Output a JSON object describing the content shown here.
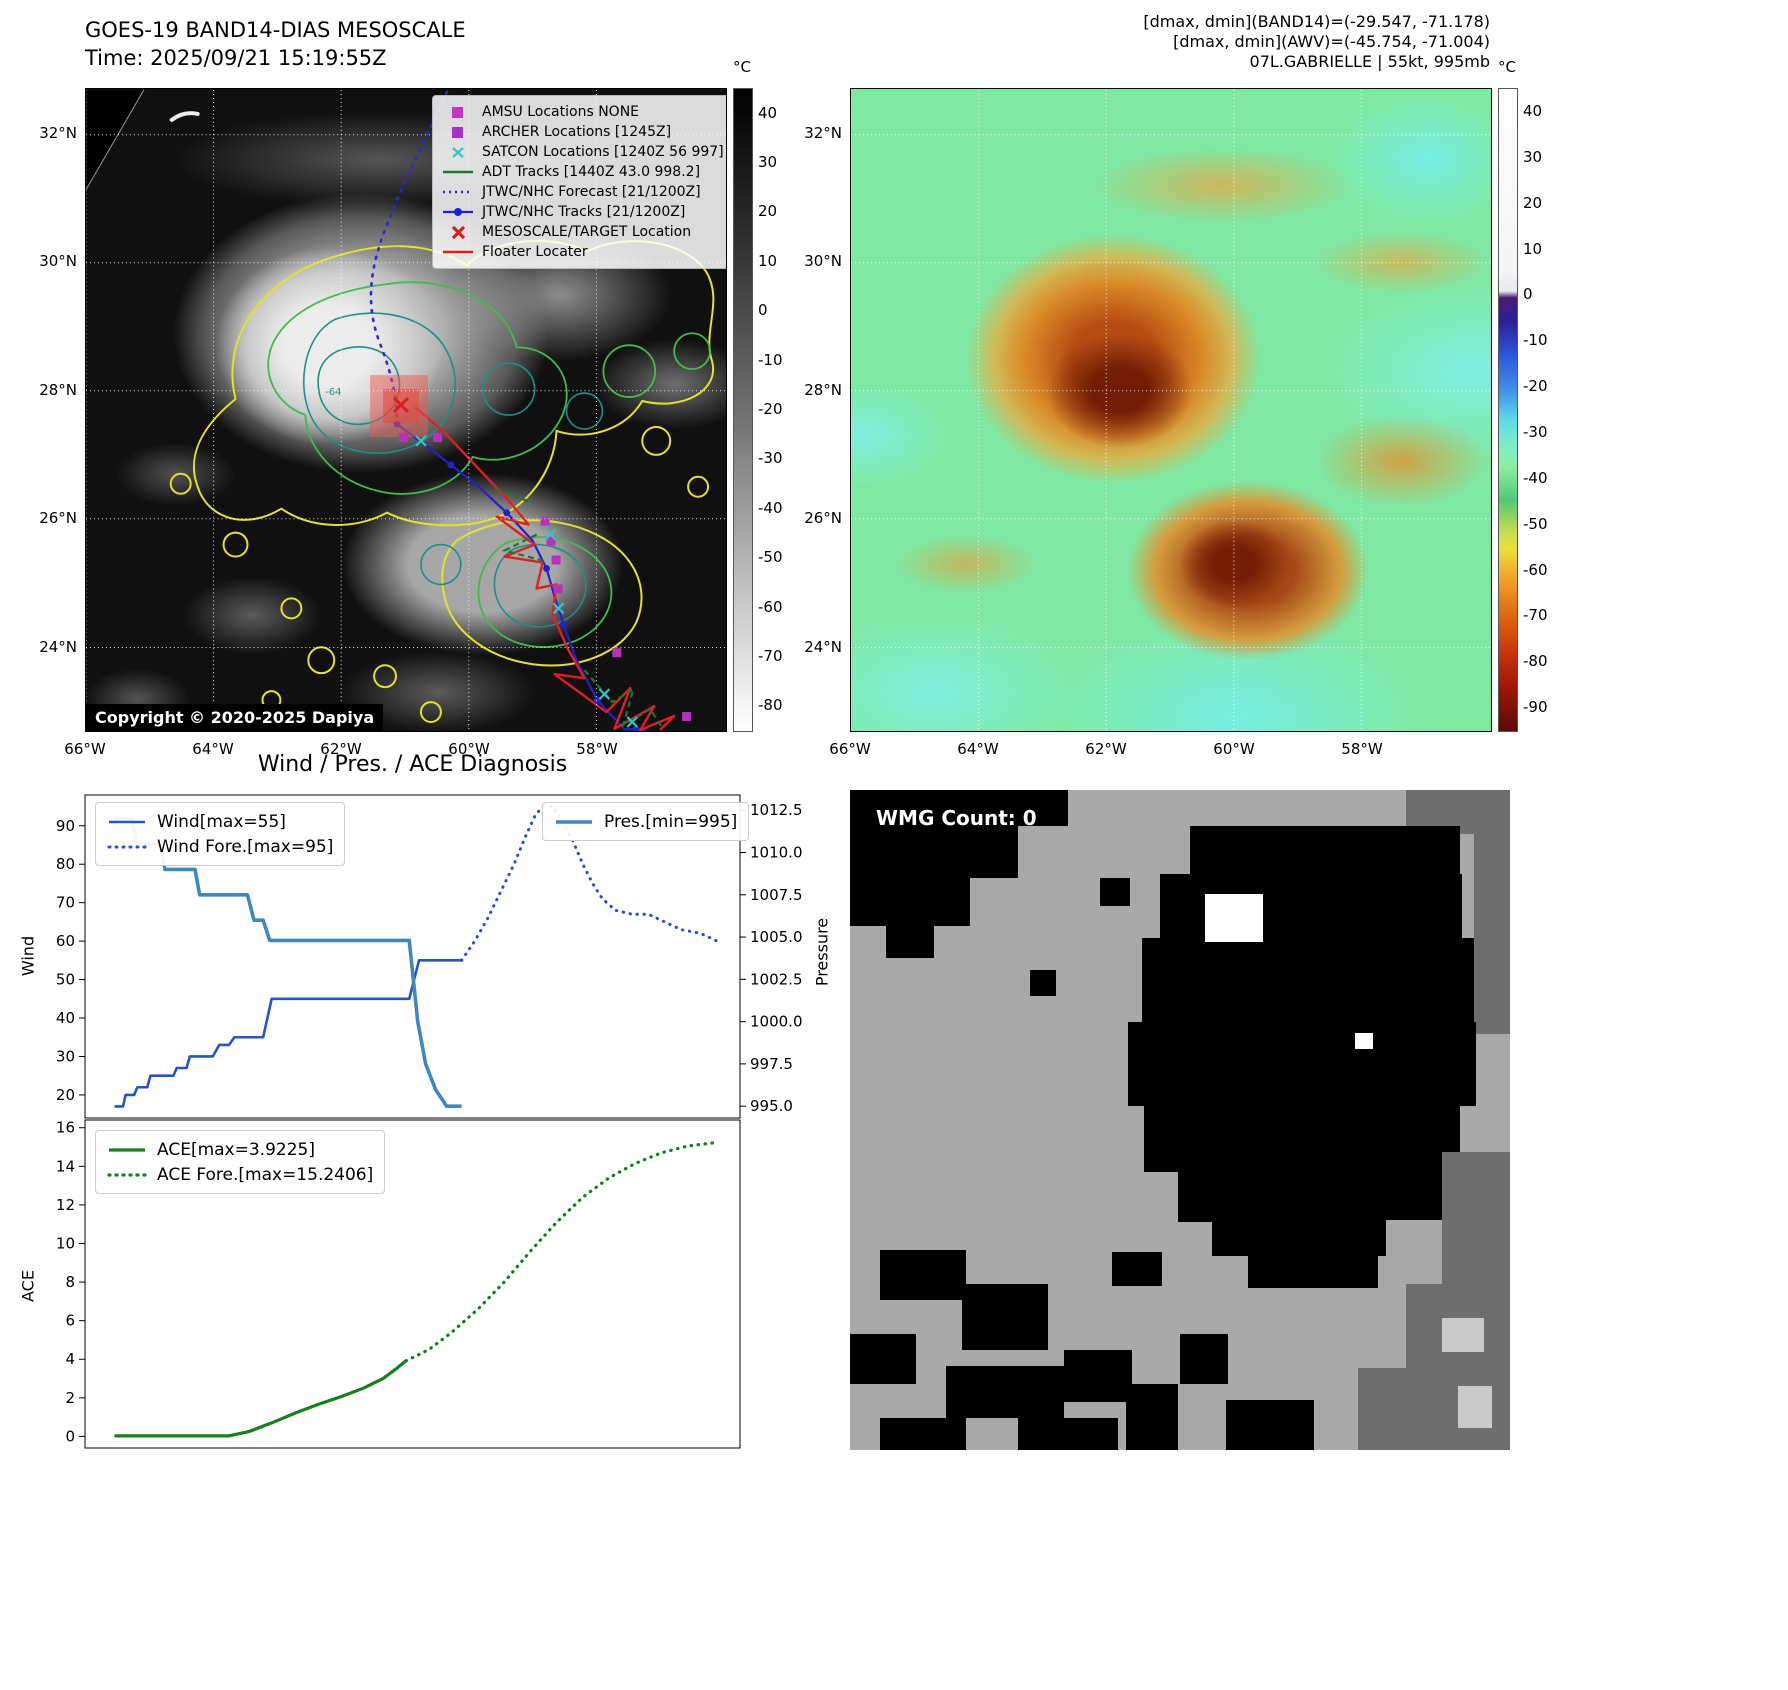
{
  "colors": {
    "track_blue": "#2222cc",
    "forecast_blue": "#2a2ad0",
    "floater_red": "#e02020",
    "wind_blue": "#2653c9",
    "pressure_blue": "#3f87c0",
    "ace_green": "#15801c",
    "archer_magenta": "#bb2fbf",
    "satcon_cyan": "#2ec8c8",
    "adt_green": "#157a2e"
  },
  "panel_ir": {
    "title_line1": "GOES-19 BAND14-DIAS MESOSCALE",
    "title_line2": "Time: 2025/09/21 15:19:55Z",
    "copyright": "Copyright © 2020-2025 Dapiya",
    "contour_label": "-64",
    "lat_ticks": [
      "32°N",
      "30°N",
      "28°N",
      "26°N",
      "24°N"
    ],
    "lon_ticks": [
      "66°W",
      "64°W",
      "62°W",
      "60°W",
      "58°W"
    ],
    "colorbar": {
      "unit": "°C",
      "vmax": 45,
      "vmin": -85,
      "ticks": [
        40,
        30,
        20,
        10,
        0,
        -10,
        -20,
        -30,
        -40,
        -50,
        -60,
        -70,
        -80
      ]
    },
    "legend": [
      {
        "label": "AMSU Locations NONE",
        "marker": "square",
        "color": "#c433c4"
      },
      {
        "label": "ARCHER Locations [1245Z]",
        "marker": "square",
        "color": "#a633c8"
      },
      {
        "label": "SATCON Locations [1240Z 56 997]",
        "marker": "x",
        "color": "#35c8c8"
      },
      {
        "label": "ADT Tracks [1440Z 43.0 998.2]",
        "marker": "line",
        "color": "#157a2e"
      },
      {
        "label": "JTWC/NHC Forecast [21/1200Z]",
        "marker": "dotted",
        "color": "#2a2ad0"
      },
      {
        "label": "JTWC/NHC Tracks [21/1200Z]",
        "marker": "line-dot",
        "color": "#2222cc"
      },
      {
        "label": "MESOSCALE/TARGET Location",
        "marker": "x-bold",
        "color": "#d42020"
      },
      {
        "label": "Floater Locater",
        "marker": "line",
        "color": "#e02020"
      }
    ]
  },
  "panel_awv": {
    "header_lines": [
      "[dmax, dmin](BAND14)=(-29.547, -71.178)",
      "[dmax, dmin](AWV)=(-45.754, -71.004)",
      "07L.GABRIELLE | 55kt, 995mb"
    ],
    "lat_ticks": [
      "32°N",
      "30°N",
      "28°N",
      "26°N",
      "24°N"
    ],
    "lon_ticks": [
      "66°W",
      "64°W",
      "62°W",
      "60°W",
      "58°W"
    ],
    "colorbar": {
      "unit": "°C",
      "vmax": 45,
      "vmin": -95,
      "ticks": [
        40,
        30,
        20,
        10,
        0,
        -10,
        -20,
        -30,
        -40,
        -50,
        -60,
        -70,
        -80,
        -90
      ]
    }
  },
  "diagnosis": {
    "title": "Wind / Pres. / ACE Diagnosis",
    "ylabel_wind": "Wind",
    "ylabel_pressure": "Pressure",
    "ylabel_ace": "ACE"
  },
  "chart_data": [
    {
      "type": "line",
      "panel": "wind-pressure",
      "ylabel_left": "Wind",
      "ylabel_right": "Pressure",
      "ylim_left": [
        14,
        98
      ],
      "ylim_right": [
        994.3,
        1013.4
      ],
      "yticks_left": [
        20,
        30,
        40,
        50,
        60,
        70,
        80,
        90
      ],
      "yticks_right": [
        "995.0",
        "997.5",
        "1000.0",
        "1002.5",
        "1005.0",
        "1007.5",
        "1010.0",
        "1012.5"
      ],
      "grid": false,
      "legend_position": "upper-left / upper-right",
      "series": [
        {
          "name": "Wind[max=55]",
          "style": "solid",
          "axis": "left",
          "color": "#2653c9",
          "width": 2.6,
          "points": [
            [
              0.045,
              17
            ],
            [
              0.058,
              17
            ],
            [
              0.062,
              20
            ],
            [
              0.075,
              20
            ],
            [
              0.08,
              22
            ],
            [
              0.095,
              22
            ],
            [
              0.1,
              25
            ],
            [
              0.135,
              25
            ],
            [
              0.14,
              27
            ],
            [
              0.155,
              27
            ],
            [
              0.16,
              30
            ],
            [
              0.195,
              30
            ],
            [
              0.205,
              33
            ],
            [
              0.22,
              33
            ],
            [
              0.228,
              35
            ],
            [
              0.272,
              35
            ],
            [
              0.285,
              45
            ],
            [
              0.495,
              45
            ],
            [
              0.51,
              55
            ],
            [
              0.575,
              55
            ]
          ]
        },
        {
          "name": "Wind Fore.[max=95]",
          "style": "dotted",
          "axis": "left",
          "color": "#2653c9",
          "width": 3,
          "points": [
            [
              0.575,
              55
            ],
            [
              0.595,
              60
            ],
            [
              0.615,
              66
            ],
            [
              0.635,
              73
            ],
            [
              0.655,
              80
            ],
            [
              0.672,
              87
            ],
            [
              0.688,
              93
            ],
            [
              0.7,
              95
            ],
            [
              0.715,
              95
            ],
            [
              0.73,
              91
            ],
            [
              0.745,
              86
            ],
            [
              0.76,
              80
            ],
            [
              0.775,
              75
            ],
            [
              0.79,
              71
            ],
            [
              0.81,
              68
            ],
            [
              0.835,
              67
            ],
            [
              0.86,
              67
            ],
            [
              0.885,
              65
            ],
            [
              0.91,
              63
            ],
            [
              0.94,
              62
            ],
            [
              0.965,
              60
            ]
          ]
        },
        {
          "name": "Pres.[min=995]",
          "style": "solid",
          "axis": "right",
          "color": "#3f87c0",
          "width": 3.6,
          "points": [
            [
              0.045,
              1012
            ],
            [
              0.072,
              1012
            ],
            [
              0.078,
              1010.5
            ],
            [
              0.115,
              1010.5
            ],
            [
              0.122,
              1009
            ],
            [
              0.168,
              1009
            ],
            [
              0.175,
              1007.5
            ],
            [
              0.248,
              1007.5
            ],
            [
              0.258,
              1006
            ],
            [
              0.272,
              1006
            ],
            [
              0.282,
              1004.8
            ],
            [
              0.495,
              1004.8
            ],
            [
              0.508,
              1000
            ],
            [
              0.52,
              997.5
            ],
            [
              0.535,
              996
            ],
            [
              0.552,
              995
            ],
            [
              0.575,
              995
            ]
          ]
        }
      ]
    },
    {
      "type": "line",
      "panel": "ace",
      "ylabel_left": "ACE",
      "ylim_left": [
        -0.6,
        16.4
      ],
      "yticks_left": [
        0,
        2,
        4,
        6,
        8,
        10,
        12,
        14,
        16
      ],
      "grid": false,
      "legend_position": "upper-left",
      "series": [
        {
          "name": "ACE[max=3.9225]",
          "style": "solid",
          "axis": "left",
          "color": "#15801c",
          "width": 3.2,
          "points": [
            [
              0.045,
              0.03
            ],
            [
              0.22,
              0.03
            ],
            [
              0.25,
              0.25
            ],
            [
              0.285,
              0.7
            ],
            [
              0.32,
              1.2
            ],
            [
              0.355,
              1.65
            ],
            [
              0.39,
              2.05
            ],
            [
              0.425,
              2.5
            ],
            [
              0.455,
              3.0
            ],
            [
              0.475,
              3.5
            ],
            [
              0.49,
              3.92
            ]
          ]
        },
        {
          "name": "ACE Fore.[max=15.2406]",
          "style": "dotted",
          "axis": "left",
          "color": "#15801c",
          "width": 3.2,
          "points": [
            [
              0.49,
              3.92
            ],
            [
              0.525,
              4.5
            ],
            [
              0.56,
              5.4
            ],
            [
              0.6,
              6.6
            ],
            [
              0.64,
              8.0
            ],
            [
              0.68,
              9.6
            ],
            [
              0.72,
              11.1
            ],
            [
              0.76,
              12.4
            ],
            [
              0.8,
              13.4
            ],
            [
              0.84,
              14.15
            ],
            [
              0.88,
              14.7
            ],
            [
              0.92,
              15.05
            ],
            [
              0.965,
              15.24
            ]
          ]
        }
      ]
    }
  ],
  "wmg": {
    "label": "WMG Count: 0",
    "shades": {
      "black": "#000000",
      "gray": "#a9a9a9",
      "dgray": "#6e6e6e",
      "lgray": "#c9c9c9",
      "white": "#ffffff"
    },
    "blocks": [
      [
        "dgray",
        556,
        0,
        104,
        44
      ],
      [
        "dgray",
        624,
        44,
        36,
        200
      ],
      [
        "black",
        0,
        0,
        218,
        36
      ],
      [
        "black",
        0,
        36,
        168,
        52
      ],
      [
        "black",
        0,
        88,
        120,
        48
      ],
      [
        "black",
        36,
        136,
        48,
        32
      ],
      [
        "black",
        250,
        88,
        30,
        28
      ],
      [
        "black",
        180,
        180,
        26,
        26
      ],
      [
        "black",
        340,
        36,
        270,
        48
      ],
      [
        "black",
        310,
        84,
        302,
        64
      ],
      [
        "black",
        292,
        148,
        332,
        84
      ],
      [
        "black",
        278,
        232,
        348,
        84
      ],
      [
        "black",
        294,
        316,
        316,
        66
      ],
      [
        "black",
        328,
        382,
        266,
        50
      ],
      [
        "black",
        362,
        432,
        200,
        34
      ],
      [
        "black",
        398,
        466,
        130,
        32
      ],
      [
        "white",
        355,
        104,
        58,
        48
      ],
      [
        "white",
        505,
        243,
        18,
        16
      ],
      [
        "black",
        30,
        460,
        86,
        50
      ],
      [
        "black",
        112,
        494,
        86,
        66
      ],
      [
        "black",
        0,
        544,
        66,
        50
      ],
      [
        "black",
        96,
        576,
        118,
        52
      ],
      [
        "black",
        30,
        628,
        86,
        32
      ],
      [
        "black",
        214,
        560,
        68,
        52
      ],
      [
        "black",
        168,
        628,
        100,
        32
      ],
      [
        "black",
        276,
        594,
        52,
        66
      ],
      [
        "black",
        330,
        544,
        48,
        50
      ],
      [
        "black",
        262,
        462,
        50,
        34
      ],
      [
        "black",
        376,
        610,
        88,
        50
      ],
      [
        "gray",
        536,
        430,
        64,
        44
      ],
      [
        "dgray",
        556,
        494,
        104,
        166
      ],
      [
        "dgray",
        592,
        362,
        68,
        132
      ],
      [
        "dgray",
        508,
        578,
        50,
        82
      ],
      [
        "lgray",
        592,
        528,
        42,
        34
      ],
      [
        "lgray",
        608,
        596,
        34,
        42
      ]
    ]
  }
}
